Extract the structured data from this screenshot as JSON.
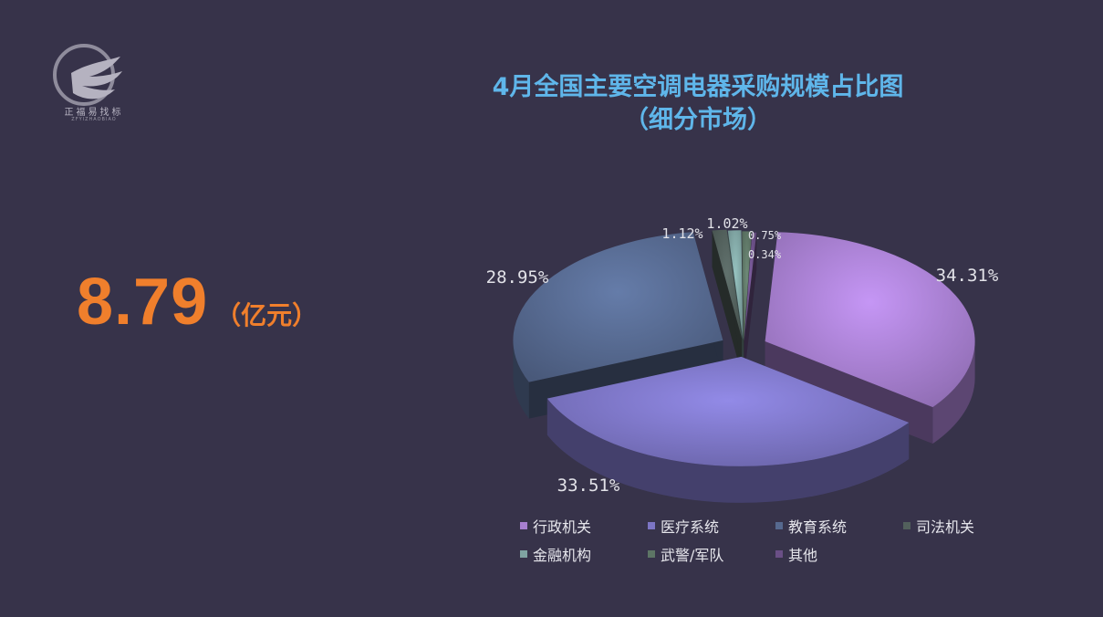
{
  "logo": {
    "text": "正福易找标",
    "sub": "ZFYIZHAOBIAO"
  },
  "title": {
    "line1": "4月全国主要空调电器采购规模占比图",
    "line2": "（细分市场）"
  },
  "kpi": {
    "value": "8.79",
    "unit": "（亿元）"
  },
  "chart_data": {
    "type": "pie",
    "title": "4月全国主要空调电器采购规模占比图（细分市场）",
    "series": [
      {
        "name": "行政机关",
        "value": 34.31,
        "label": "34.31%",
        "color": "#a77fd0"
      },
      {
        "name": "医疗系统",
        "value": 33.51,
        "label": "33.51%",
        "color": "#7c75c4"
      },
      {
        "name": "教育系统",
        "value": 28.95,
        "label": "28.95%",
        "color": "#56698f"
      },
      {
        "name": "司法机关",
        "value": 1.12,
        "label": "1.12%",
        "color": "#52605c"
      },
      {
        "name": "金融机构",
        "value": 1.02,
        "label": "1.02%",
        "color": "#7fa4a2"
      },
      {
        "name": "武警/军队",
        "value": 0.75,
        "label": "0.75%",
        "color": "#5d7565"
      },
      {
        "name": "其他",
        "value": 0.34,
        "label": "0.34%",
        "color": "#6a4f86"
      }
    ],
    "legend_position": "bottom"
  }
}
